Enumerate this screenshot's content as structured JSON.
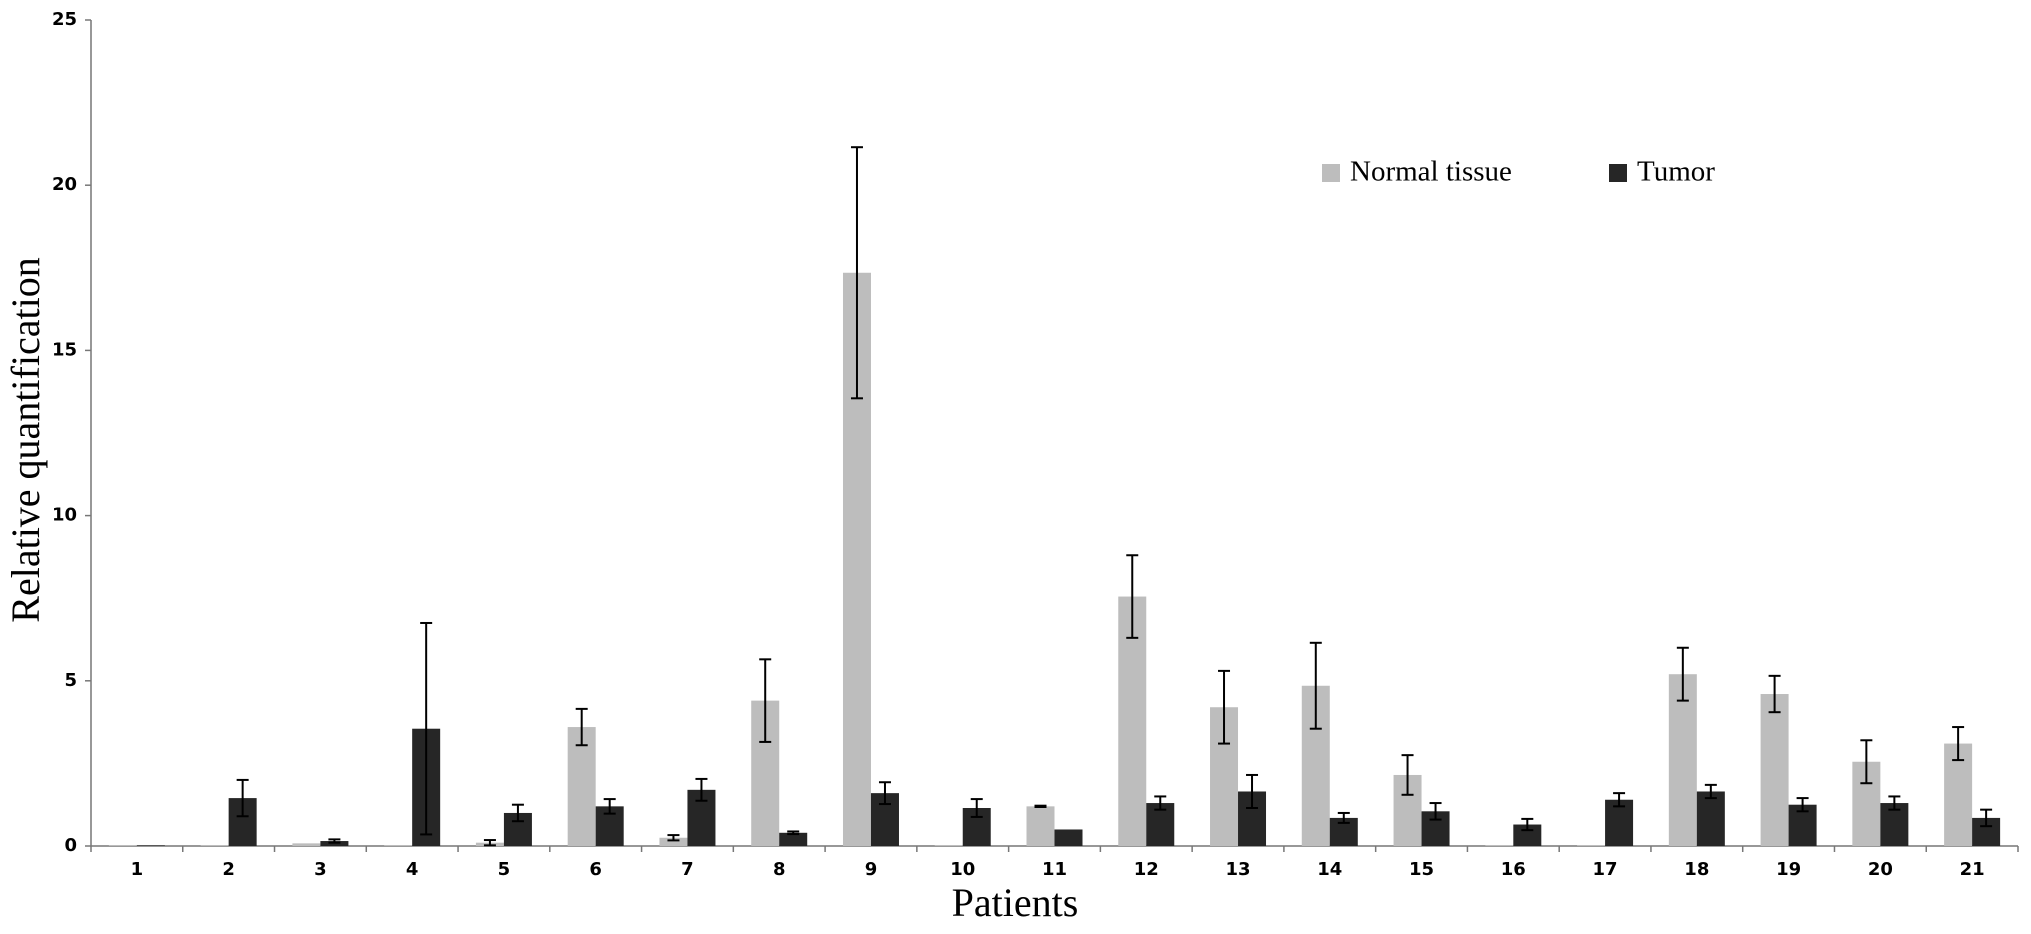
{
  "chart_data": {
    "type": "bar",
    "x_label": "Patients",
    "y_label": "Relative quantification",
    "categories": [
      "1",
      "2",
      "3",
      "4",
      "5",
      "6",
      "7",
      "8",
      "9",
      "10",
      "11",
      "12",
      "13",
      "14",
      "15",
      "16",
      "17",
      "18",
      "19",
      "20",
      "21"
    ],
    "series": [
      {
        "name": "Normal tissue",
        "color": "#bdbdbd",
        "values": [
          0.02,
          0.03,
          0.08,
          0.02,
          0.1,
          3.6,
          0.25,
          4.4,
          17.35,
          0.03,
          1.2,
          7.55,
          4.2,
          4.85,
          2.15,
          0.03,
          0.03,
          5.2,
          4.6,
          2.55,
          3.1
        ],
        "errors": [
          null,
          null,
          null,
          null,
          0.08,
          0.55,
          0.08,
          1.25,
          3.8,
          null,
          0.02,
          1.25,
          1.1,
          1.3,
          0.6,
          null,
          null,
          0.8,
          0.55,
          0.65,
          0.5
        ]
      },
      {
        "name": "Tumor",
        "color": "#262626",
        "values": [
          0.02,
          1.45,
          0.15,
          3.55,
          1.0,
          1.2,
          1.7,
          0.4,
          1.6,
          1.15,
          0.5,
          1.3,
          1.65,
          0.85,
          1.05,
          0.65,
          1.4,
          1.65,
          1.25,
          1.3,
          0.85
        ],
        "errors": [
          null,
          0.55,
          0.05,
          3.2,
          0.25,
          0.22,
          0.33,
          0.04,
          0.33,
          0.27,
          null,
          0.2,
          0.5,
          0.15,
          0.25,
          0.17,
          0.2,
          0.2,
          0.2,
          0.2,
          0.25
        ]
      }
    ],
    "ylim": [
      0,
      25
    ],
    "yticks": [
      0,
      5,
      10,
      15,
      20,
      25
    ],
    "grid": false,
    "legend": "top-right"
  }
}
